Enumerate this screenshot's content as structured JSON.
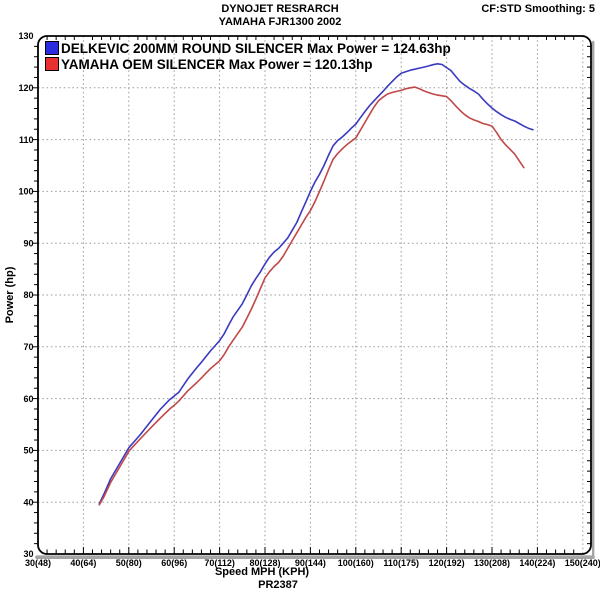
{
  "header": {
    "title_line1": "DYNOJET RESRARCH",
    "title_line2": "YAMAHA FJR1300 2002",
    "smoothing": "CF:STD Smoothing: 5"
  },
  "legend": [
    {
      "label": "DELKEVIC 200MM ROUND SILENCER Max Power = 124.63hp",
      "color": "#2a2ae0"
    },
    {
      "label": "YAMAHA OEM SILENCER Max Power = 120.13hp",
      "color": "#e83030"
    }
  ],
  "chart_data": {
    "type": "line",
    "title": "DYNOJET RESRARCH",
    "subtitle": "YAMAHA FJR1300 2002",
    "xlabel": "Speed MPH (KPH)",
    "ylabel": "Power (hp)",
    "footer": "PR2387",
    "grid": true,
    "legend_position": "top-left-inside",
    "xlim": [
      30,
      150
    ],
    "ylim": [
      30,
      130
    ],
    "x_tick_values": [
      30,
      40,
      50,
      60,
      70,
      80,
      90,
      100,
      110,
      120,
      130,
      140,
      150
    ],
    "x_tick_labels": [
      "30(48)",
      "40(64)",
      "50(80)",
      "60(96)",
      "70(112)",
      "80(128)",
      "90(144)",
      "100(160)",
      "110(175)",
      "120(192)",
      "130(208)",
      "140(224)",
      "150(240)"
    ],
    "y_tick_values": [
      30,
      40,
      50,
      60,
      70,
      80,
      90,
      100,
      110,
      120,
      130
    ],
    "minor_tick_step": 2,
    "grid_color": "#999999",
    "series": [
      {
        "name": "DELKEVIC 200MM ROUND SILENCER",
        "max_power_hp": 124.63,
        "color": "#3a3ac0",
        "points": [
          [
            43.5,
            39.7
          ],
          [
            44.5,
            41.5
          ],
          [
            46,
            44.5
          ],
          [
            48,
            47.5
          ],
          [
            50,
            50.5
          ],
          [
            51,
            51.5
          ],
          [
            52.5,
            53
          ],
          [
            55,
            55.8
          ],
          [
            57,
            58
          ],
          [
            59,
            59.8
          ],
          [
            60,
            60.5
          ],
          [
            61,
            61.2
          ],
          [
            63,
            63.8
          ],
          [
            65,
            66
          ],
          [
            66,
            67
          ],
          [
            68,
            69.2
          ],
          [
            70,
            71.2
          ],
          [
            71,
            72.5
          ],
          [
            72,
            74.2
          ],
          [
            73,
            75.8
          ],
          [
            75,
            78.3
          ],
          [
            76,
            80
          ],
          [
            77,
            81.8
          ],
          [
            78,
            83.2
          ],
          [
            79,
            84.5
          ],
          [
            80,
            86
          ],
          [
            81,
            87.3
          ],
          [
            82,
            88.3
          ],
          [
            83,
            89
          ],
          [
            84,
            90
          ],
          [
            85,
            91
          ],
          [
            86,
            92.5
          ],
          [
            87,
            94
          ],
          [
            88,
            96
          ],
          [
            89,
            98
          ],
          [
            90,
            100
          ],
          [
            91,
            101.8
          ],
          [
            92,
            103.3
          ],
          [
            93,
            105
          ],
          [
            94,
            107
          ],
          [
            95,
            108.8
          ],
          [
            96,
            109.8
          ],
          [
            97,
            110.5
          ],
          [
            98,
            111.3
          ],
          [
            99,
            112.2
          ],
          [
            100,
            113
          ],
          [
            101,
            114.2
          ],
          [
            102,
            115.4
          ],
          [
            103,
            116.5
          ],
          [
            104,
            117.5
          ],
          [
            105,
            118.4
          ],
          [
            106,
            119.3
          ],
          [
            107,
            120.3
          ],
          [
            108,
            121.2
          ],
          [
            109,
            122.1
          ],
          [
            110,
            122.8
          ],
          [
            111,
            123.1
          ],
          [
            112,
            123.4
          ],
          [
            113,
            123.6
          ],
          [
            114,
            123.8
          ],
          [
            115,
            124
          ],
          [
            116,
            124.2
          ],
          [
            117,
            124.45
          ],
          [
            118,
            124.63
          ],
          [
            119,
            124.5
          ],
          [
            120,
            123.9
          ],
          [
            121,
            123.3
          ],
          [
            122,
            122.2
          ],
          [
            123,
            121.2
          ],
          [
            124,
            120.5
          ],
          [
            125,
            119.9
          ],
          [
            126,
            119.4
          ],
          [
            127,
            118.8
          ],
          [
            128,
            117.8
          ],
          [
            129,
            116.9
          ],
          [
            130,
            116.1
          ],
          [
            131,
            115.4
          ],
          [
            132,
            114.8
          ],
          [
            133,
            114.3
          ],
          [
            134,
            113.9
          ],
          [
            135,
            113.6
          ],
          [
            136,
            113.1
          ],
          [
            137,
            112.6
          ],
          [
            138,
            112.2
          ],
          [
            139,
            111.9
          ]
        ]
      },
      {
        "name": "YAMAHA OEM SILENCER",
        "max_power_hp": 120.13,
        "color": "#c04848",
        "points": [
          [
            43.5,
            39.5
          ],
          [
            44.5,
            41
          ],
          [
            46,
            43.8
          ],
          [
            48,
            46.8
          ],
          [
            50,
            49.8
          ],
          [
            51,
            50.8
          ],
          [
            52.5,
            52.2
          ],
          [
            55,
            54.5
          ],
          [
            57,
            56.3
          ],
          [
            59,
            58
          ],
          [
            60,
            58.7
          ],
          [
            61,
            59.5
          ],
          [
            63,
            61.5
          ],
          [
            65,
            63.1
          ],
          [
            66,
            64
          ],
          [
            68,
            65.8
          ],
          [
            70,
            67.3
          ],
          [
            71,
            68.5
          ],
          [
            72,
            70
          ],
          [
            73,
            71.3
          ],
          [
            75,
            73.8
          ],
          [
            76,
            75.5
          ],
          [
            77,
            77.3
          ],
          [
            78,
            79.2
          ],
          [
            79,
            81.3
          ],
          [
            80,
            83.3
          ],
          [
            81,
            84.5
          ],
          [
            82,
            85.5
          ],
          [
            83,
            86.3
          ],
          [
            84,
            87.5
          ],
          [
            85,
            89
          ],
          [
            86,
            90.5
          ],
          [
            87,
            92
          ],
          [
            88,
            93.5
          ],
          [
            89,
            95
          ],
          [
            90,
            96.3
          ],
          [
            91,
            98
          ],
          [
            92,
            100
          ],
          [
            93,
            102
          ],
          [
            94,
            104.2
          ],
          [
            95,
            106.2
          ],
          [
            96,
            107.3
          ],
          [
            97,
            108.2
          ],
          [
            98,
            109
          ],
          [
            99,
            109.7
          ],
          [
            100,
            110.3
          ],
          [
            101,
            111.8
          ],
          [
            102,
            113.3
          ],
          [
            103,
            114.8
          ],
          [
            104,
            116.3
          ],
          [
            105,
            117.5
          ],
          [
            106,
            118.2
          ],
          [
            107,
            118.8
          ],
          [
            108,
            119.1
          ],
          [
            109,
            119.3
          ],
          [
            110,
            119.5
          ],
          [
            111,
            119.8
          ],
          [
            112,
            120
          ],
          [
            113,
            120.13
          ],
          [
            114,
            119.8
          ],
          [
            115,
            119.4
          ],
          [
            116,
            119.1
          ],
          [
            117,
            118.8
          ],
          [
            118,
            118.6
          ],
          [
            119,
            118.45
          ],
          [
            120,
            118.3
          ],
          [
            121,
            117.5
          ],
          [
            122,
            116.5
          ],
          [
            123,
            115.6
          ],
          [
            124,
            114.8
          ],
          [
            125,
            114.2
          ],
          [
            126,
            113.8
          ],
          [
            127,
            113.5
          ],
          [
            128,
            113.1
          ],
          [
            129,
            112.9
          ],
          [
            130,
            112.6
          ],
          [
            131,
            111.4
          ],
          [
            132,
            110
          ],
          [
            133,
            109
          ],
          [
            134,
            108.1
          ],
          [
            135,
            107.2
          ],
          [
            136,
            105.9
          ],
          [
            137,
            104.6
          ]
        ]
      }
    ]
  }
}
